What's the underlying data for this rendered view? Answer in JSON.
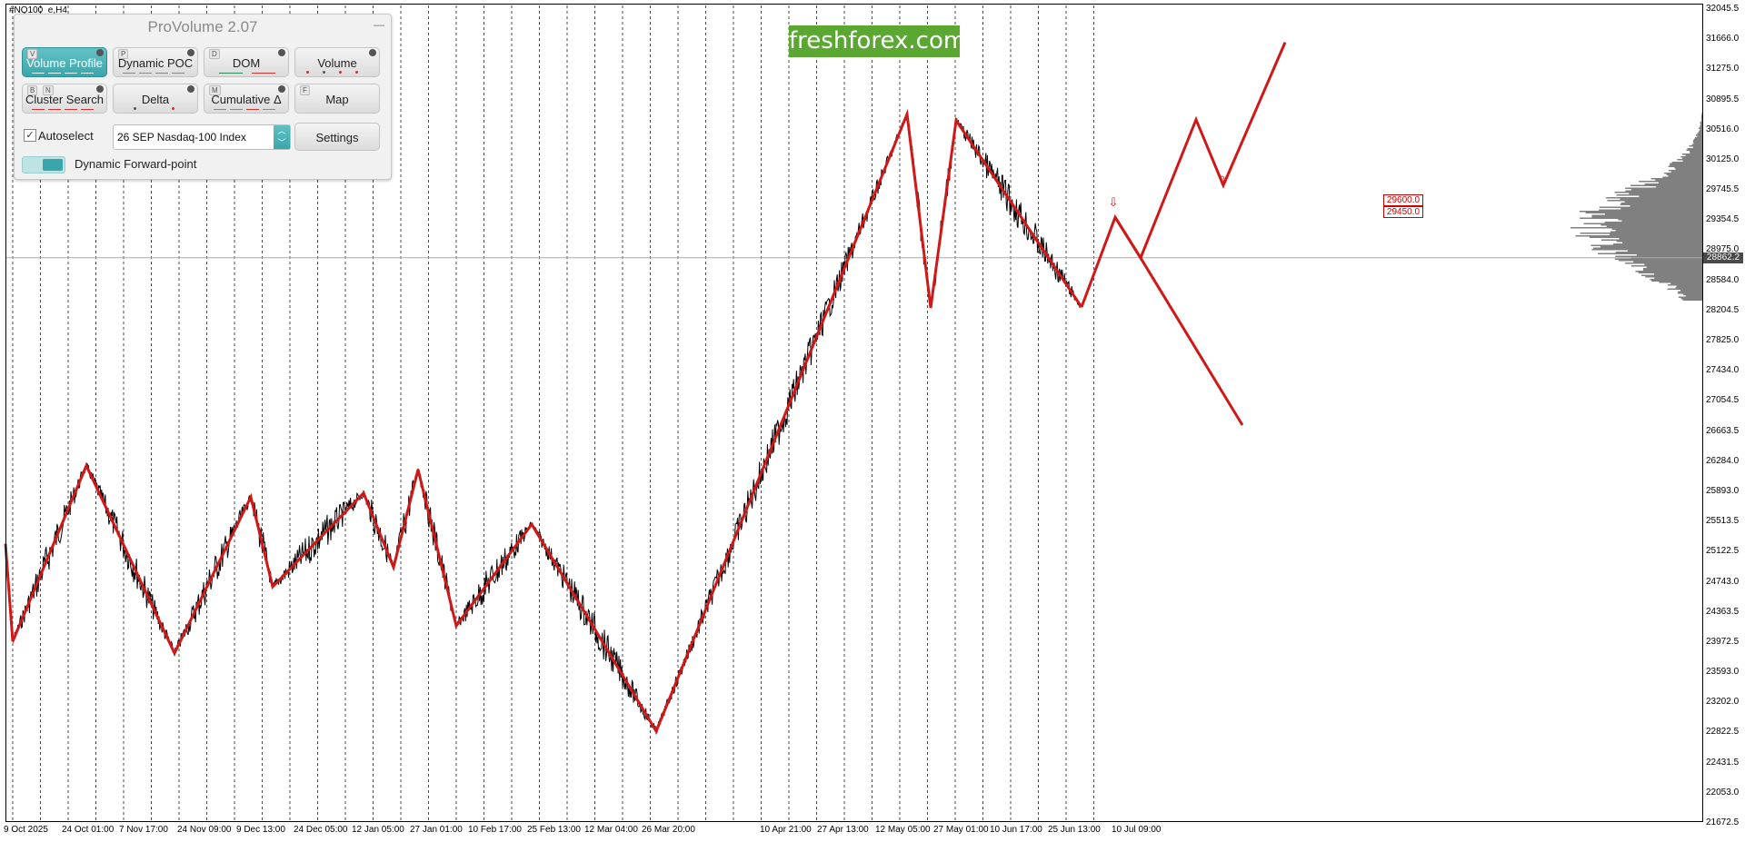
{
  "chart_header": {
    "symbol": "#NQ100_e,H4"
  },
  "watermark": {
    "text": "freshforex.com",
    "color": "#5aa832"
  },
  "colors": {
    "zigzag": "#d01818",
    "candle": "#000000",
    "grid": "#000000",
    "profile": "#808080",
    "panel_active": "#3aa6ab"
  },
  "panel": {
    "title": "ProVolume 2.07",
    "minimize_icon": "minimize-icon",
    "buttons": [
      {
        "label": "Volume Profile",
        "hotkey": "V",
        "active": true
      },
      {
        "label": "Dynamic POC",
        "hotkey": "P",
        "active": false
      },
      {
        "label": "DOM",
        "hotkey": "D",
        "active": false
      },
      {
        "label": "Volume",
        "hotkey": "",
        "active": false
      },
      {
        "label": "Cluster Search",
        "hotkey": "B",
        "hotkey2": "N",
        "active": false
      },
      {
        "label": "Delta",
        "hotkey": "",
        "active": false
      },
      {
        "label": "Cumulative Δ",
        "hotkey": "M",
        "active": false
      },
      {
        "label": "Map",
        "hotkey": "F",
        "active": false
      }
    ],
    "autoselect": {
      "label": "Autoselect",
      "checked": true
    },
    "instrument": {
      "value": "26 SEP Nasdaq-100 Index"
    },
    "settings_label": "Settings",
    "forward_point": {
      "label": "Dynamic Forward-point",
      "enabled": true
    }
  },
  "current_price": "28862.2",
  "levels": [
    "29600.0",
    "29450.0"
  ],
  "chart_data": {
    "type": "line",
    "title": "",
    "instrument": "#NQ100_e,H4",
    "y_axis_labels": [
      "32045.5",
      "31666.0",
      "31275.0",
      "30895.5",
      "30516.0",
      "30125.0",
      "29745.5",
      "29354.5",
      "28975.0",
      "28584.0",
      "28204.5",
      "27825.0",
      "27434.0",
      "27054.5",
      "26663.5",
      "26284.0",
      "25893.0",
      "25513.5",
      "25122.5",
      "24743.0",
      "24363.5",
      "23972.5",
      "23593.0",
      "23202.0",
      "22822.5",
      "22431.5",
      "22053.0",
      "21672.5"
    ],
    "ylim": [
      21672.5,
      32045.5
    ],
    "x_axis_labels": [
      "9 Oct 2025",
      "24 Oct 01:00",
      "7 Nov 17:00",
      "24 Nov 09:00",
      "9 Dec 13:00",
      "24 Dec 05:00",
      "12 Jan 05:00",
      "27 Jan 01:00",
      "10 Feb 17:00",
      "25 Feb 13:00",
      "12 Mar 04:00",
      "26 Mar 20:00",
      "10 Apr 21:00",
      "27 Apr 13:00",
      "12 May 05:00",
      "27 May 01:00",
      "10 Jun 17:00",
      "25 Jun 13:00",
      "10 Jul 09:00"
    ],
    "zigzag": [
      25200,
      23950,
      26200,
      23800,
      25800,
      24650,
      25850,
      24900,
      26150,
      24150,
      25450,
      22800,
      30700,
      28220,
      30620,
      28230
    ],
    "forecast_bull": [
      28230,
      29380,
      28860,
      30630,
      29790,
      31620
    ],
    "forecast_bear": [
      29380,
      28860,
      26720
    ],
    "signals": [
      {
        "type": "down-arrow",
        "price": 29520
      },
      {
        "type": "up-arrow",
        "price": 29800
      }
    ],
    "current_price": 28862.2,
    "grid": "vertical dashed"
  }
}
